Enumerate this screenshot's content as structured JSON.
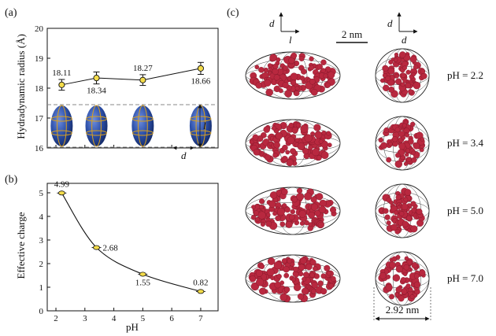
{
  "panel_labels": {
    "a": "(a)",
    "b": "(b)",
    "c": "(c)"
  },
  "colors": {
    "marker_fill": "#f4dc4a",
    "ellipsoid": "#2c4fa8",
    "ellipsoid_band": "#d9a020",
    "protein": "#b8283f",
    "guide": "#8a8a8a"
  },
  "chart_data": [
    {
      "type": "scatter",
      "panel": "(a)",
      "xlabel": "",
      "ylabel": "Hydradynamic radius (Å)",
      "x": [
        2.2,
        3.4,
        5.0,
        7.0
      ],
      "values": [
        18.11,
        18.34,
        18.27,
        18.66
      ],
      "errors": [
        0.18,
        0.2,
        0.18,
        0.2
      ],
      "labels": [
        "18.11",
        "18.34",
        "18.27",
        "18.66"
      ],
      "xlim": [
        1.7,
        7.6
      ],
      "ylim": [
        16,
        20
      ],
      "yticks": [
        "16",
        "17",
        "18",
        "19",
        "20"
      ],
      "annotations": {
        "long_axis": "l",
        "short_axis": "d"
      }
    },
    {
      "type": "line",
      "panel": "(b)",
      "xlabel": "pH",
      "ylabel": "Effective charge",
      "x": [
        2.2,
        3.4,
        5.0,
        7.0
      ],
      "values": [
        4.99,
        2.68,
        1.55,
        0.82
      ],
      "labels": [
        "4.99",
        "2.68",
        "1.55",
        "0.82"
      ],
      "xlim": [
        1.7,
        7.6
      ],
      "ylim": [
        0,
        5.4
      ],
      "xticks": [
        "2",
        "3",
        "4",
        "5",
        "6",
        "7"
      ],
      "yticks": [
        "0",
        "1",
        "2",
        "3",
        "4",
        "5"
      ]
    }
  ],
  "panel_c": {
    "axis_labels": {
      "d1": "d",
      "l": "l",
      "d2": "d",
      "d3": "d"
    },
    "scale_bar": "2 nm",
    "rows": [
      {
        "ph": "pH = 2.2"
      },
      {
        "ph": "pH = 3.4"
      },
      {
        "ph": "pH = 5.0"
      },
      {
        "ph": "pH = 7.0"
      }
    ],
    "diameter": "2.92 nm"
  }
}
